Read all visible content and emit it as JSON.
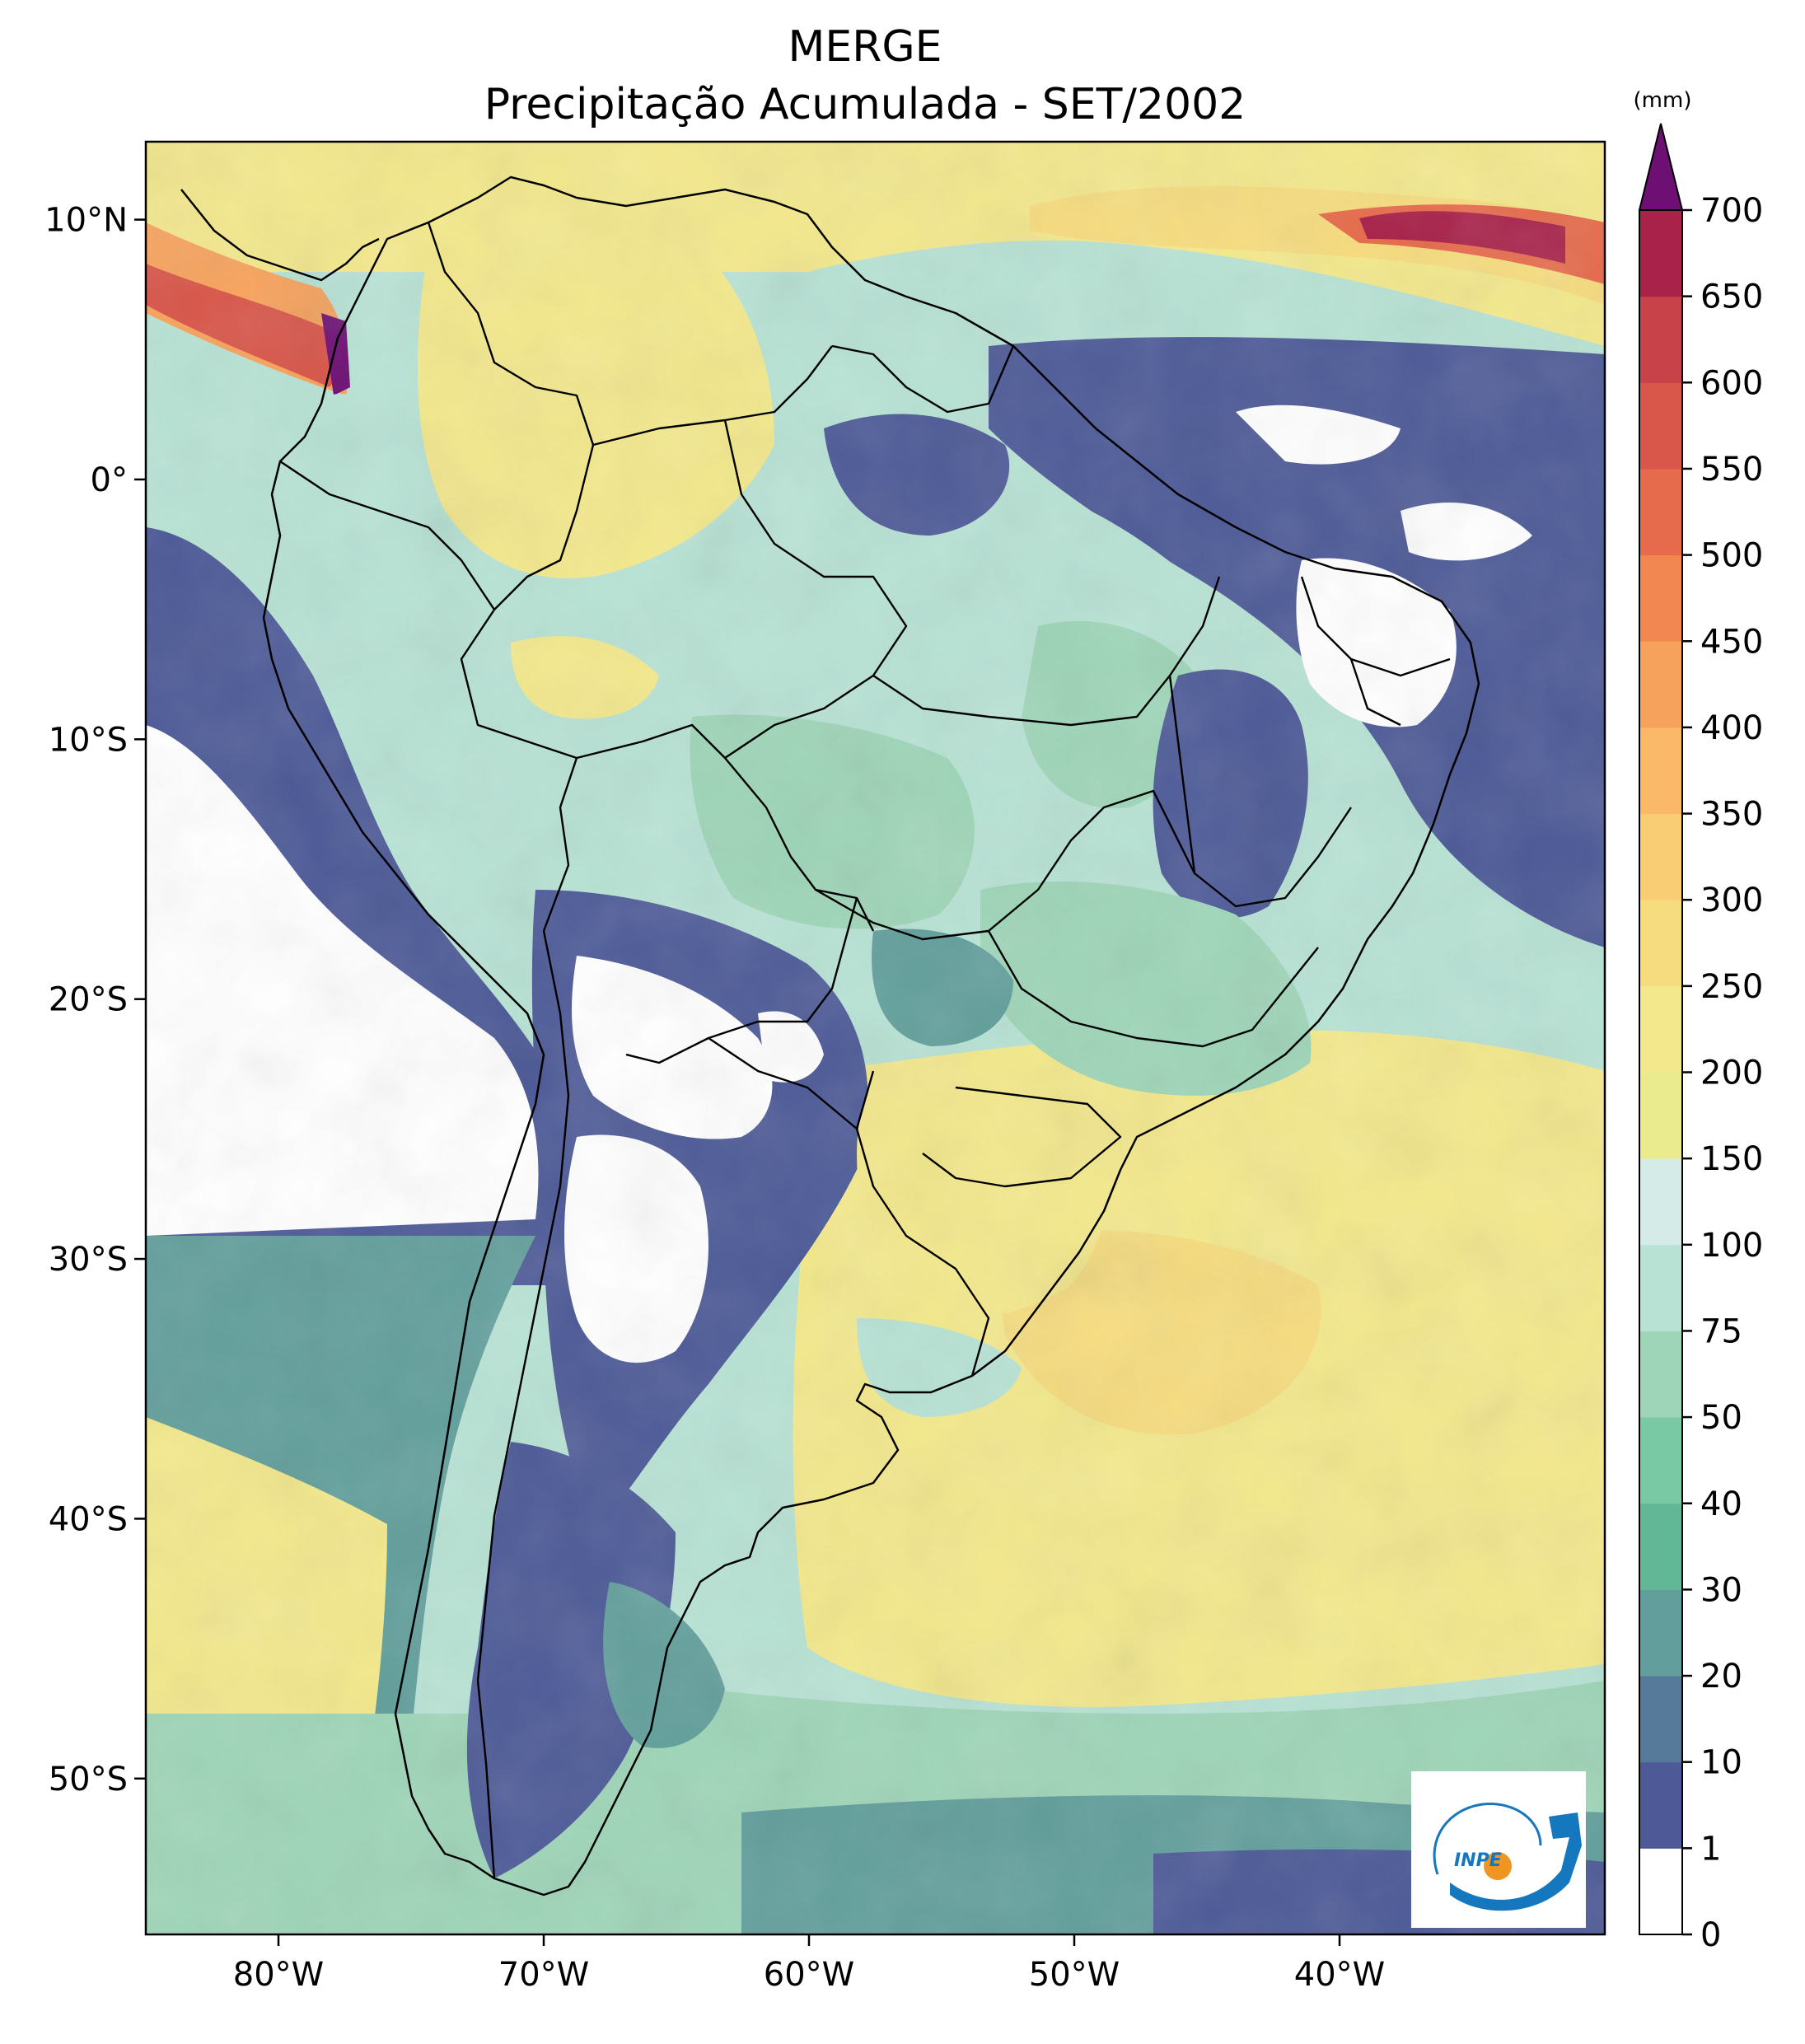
{
  "title": {
    "line1": "MERGE",
    "line2": "Precipitação Acumulada - SET/2002"
  },
  "map": {
    "lon_range": [
      -85,
      -30
    ],
    "lat_range": [
      -56,
      13
    ],
    "lon_ticks": [
      {
        "value": -80,
        "label": "80°W"
      },
      {
        "value": -70,
        "label": "70°W"
      },
      {
        "value": -60,
        "label": "60°W"
      },
      {
        "value": -50,
        "label": "50°W"
      },
      {
        "value": -40,
        "label": "40°W"
      }
    ],
    "lat_ticks": [
      {
        "value": 10,
        "label": "10°N"
      },
      {
        "value": 0,
        "label": "0°"
      },
      {
        "value": -10,
        "label": "10°S"
      },
      {
        "value": -20,
        "label": "20°S"
      },
      {
        "value": -30,
        "label": "30°S"
      },
      {
        "value": -40,
        "label": "40°S"
      },
      {
        "value": -50,
        "label": "50°S"
      }
    ]
  },
  "colorbar": {
    "unit": "(mm)",
    "levels": [
      "0",
      "1",
      "10",
      "20",
      "30",
      "40",
      "50",
      "75",
      "100",
      "150",
      "200",
      "250",
      "300",
      "350",
      "400",
      "450",
      "500",
      "550",
      "600",
      "650",
      "700"
    ],
    "colors": [
      "#ffffff",
      "#4d5a97",
      "#567a9a",
      "#629f9c",
      "#62b796",
      "#79c9a4",
      "#9ed5b8",
      "#b7e2d4",
      "#d4ebe7",
      "#eaeb8e",
      "#f3e88c",
      "#f6dc7f",
      "#f9cd74",
      "#f9b968",
      "#f7a25c",
      "#f28752",
      "#e66b4c",
      "#d8564a",
      "#c84349",
      "#a8224a"
    ],
    "extend_color": "#6d0f73"
  },
  "logo": {
    "text": "INPE",
    "colors": {
      "blue": "#1577bd",
      "orange": "#ef9522"
    }
  }
}
